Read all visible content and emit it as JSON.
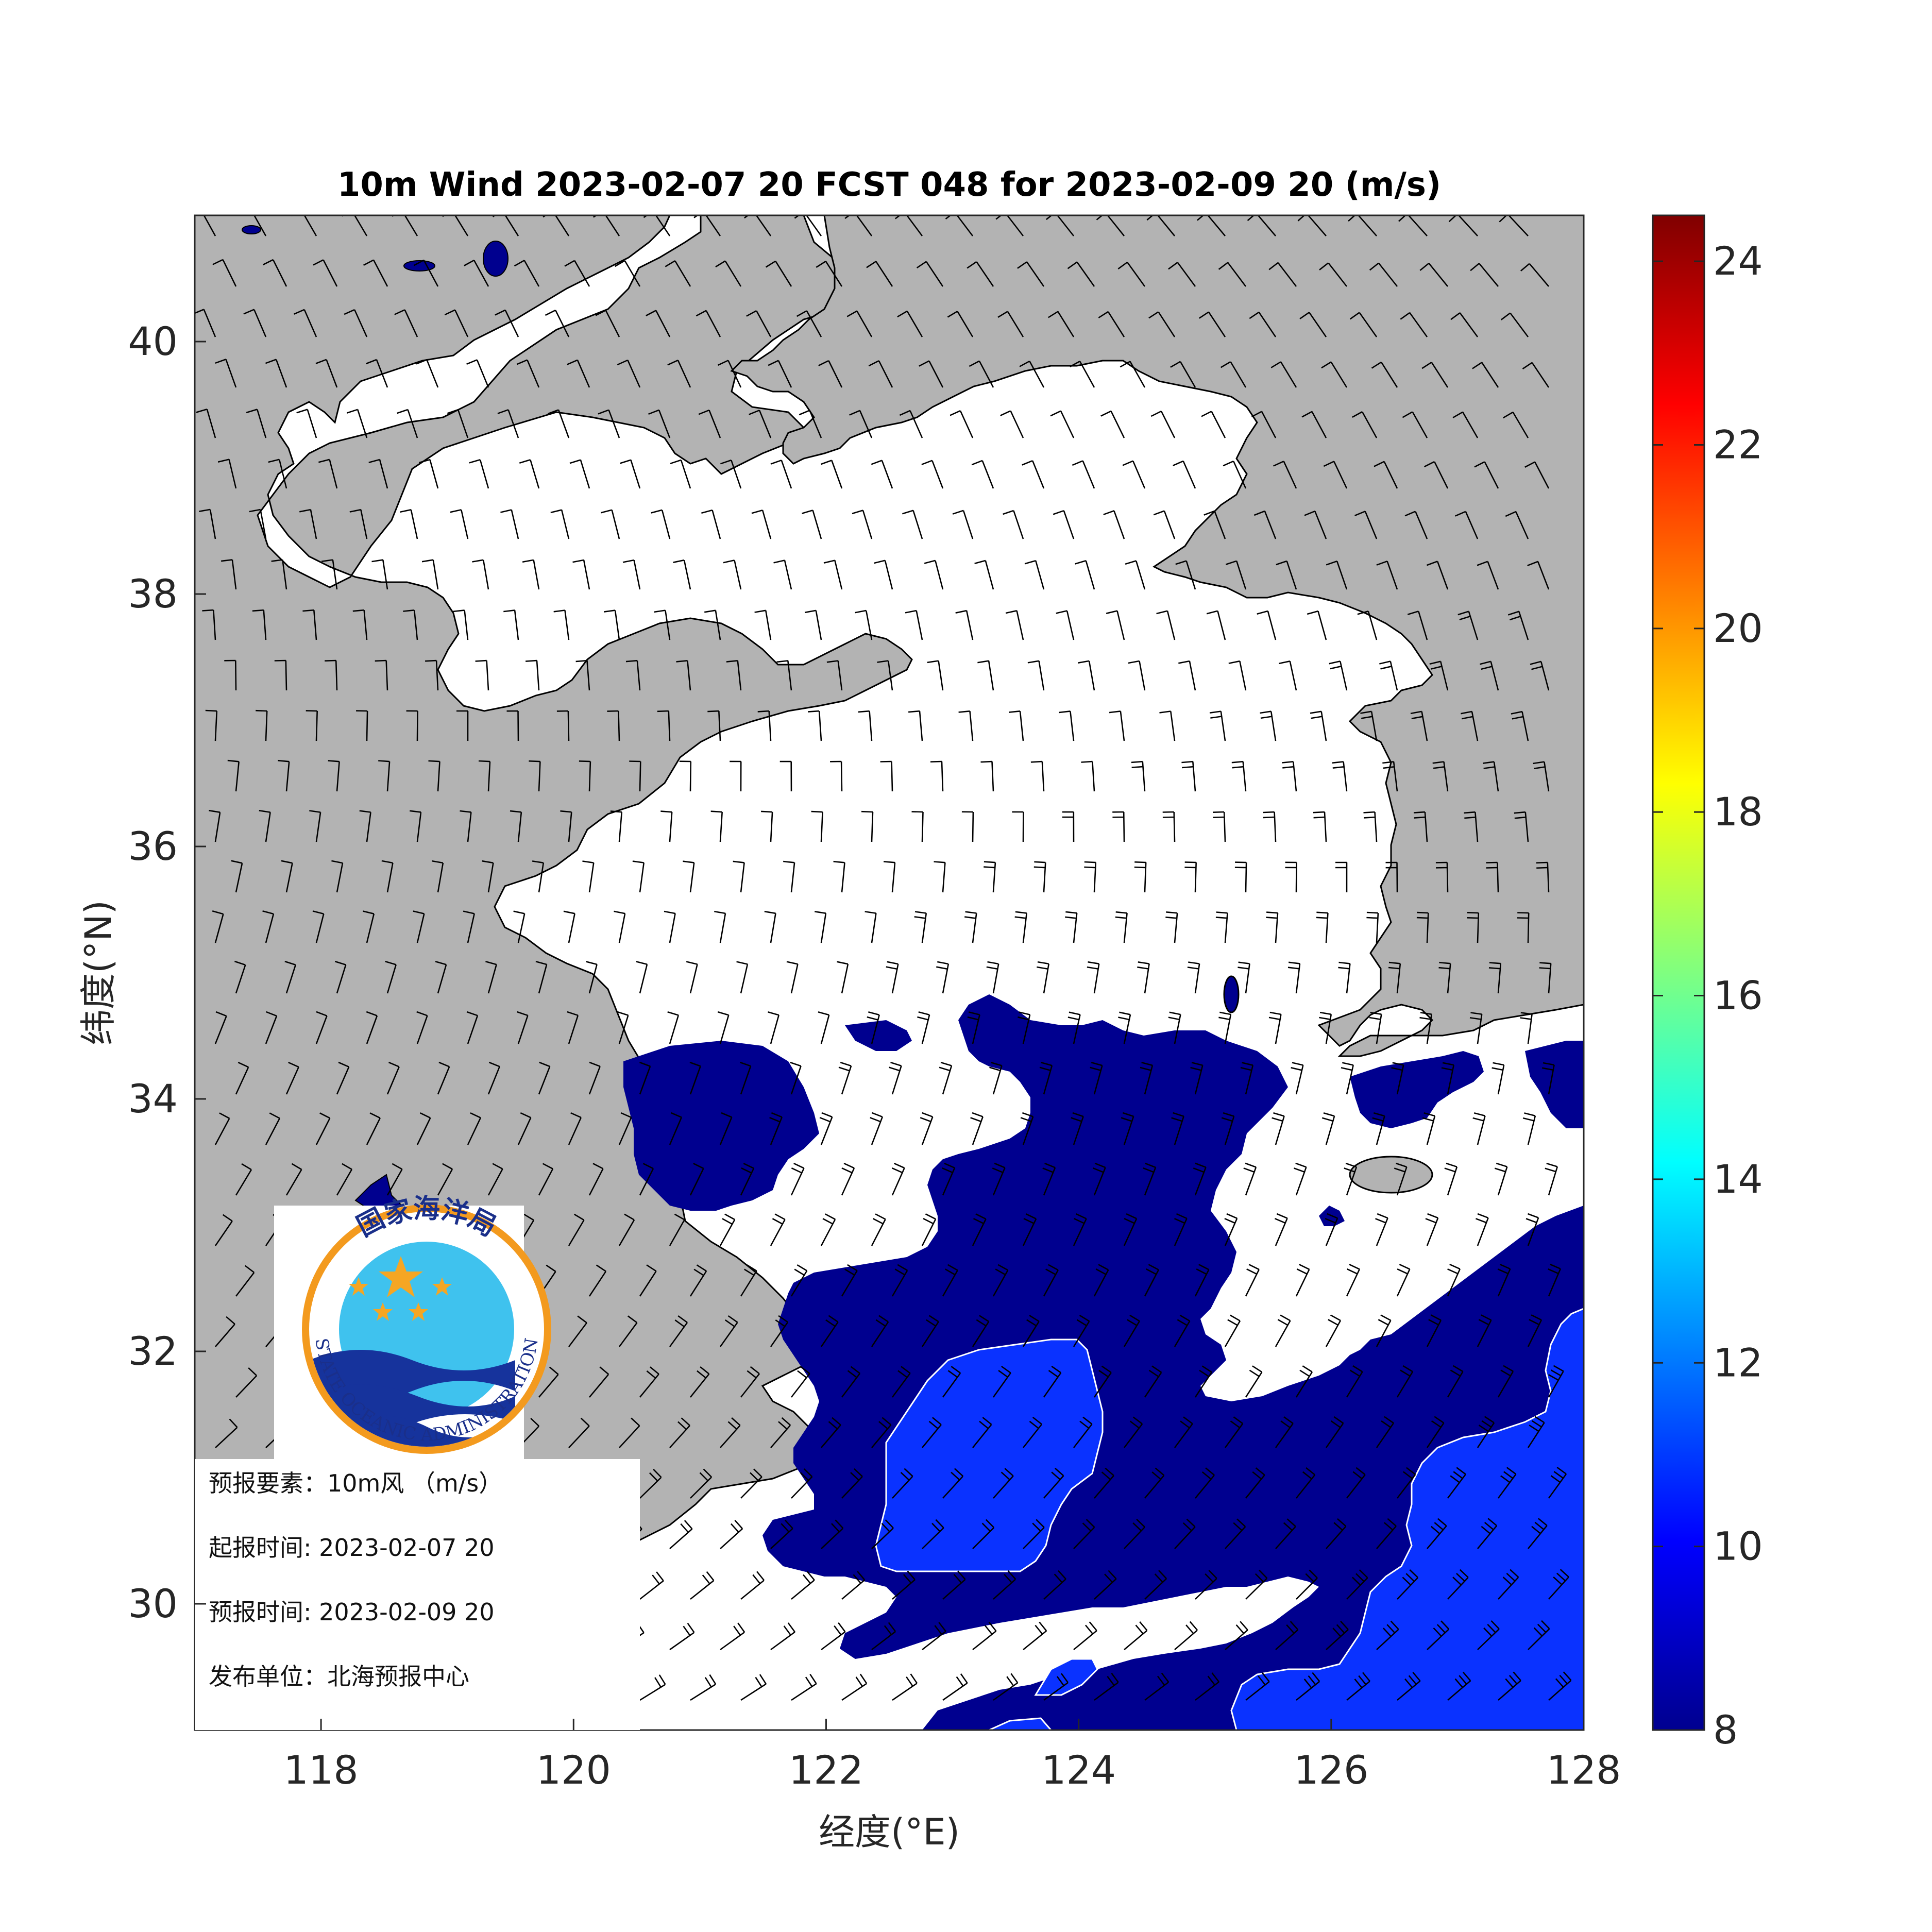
{
  "title": "10m Wind 2023-02-07 20 FCST 048 for 2023-02-09 20 (m/s)",
  "x_axis": {
    "label": "经度(°E)",
    "ticks": [
      "118",
      "120",
      "122",
      "124",
      "126",
      "128"
    ],
    "range": [
      117,
      128
    ]
  },
  "y_axis": {
    "label": "纬度(°N)",
    "ticks": [
      "30",
      "32",
      "34",
      "36",
      "38",
      "40"
    ],
    "range": [
      29,
      41
    ]
  },
  "colorbar": {
    "ticks": [
      "8",
      "10",
      "12",
      "14",
      "16",
      "18",
      "20",
      "22",
      "24"
    ],
    "range": [
      8,
      24.5
    ],
    "colormap": "jet"
  },
  "colors": {
    "land": "#b3b3b3",
    "sea_below_8": "#ffffff",
    "wind_8_10": "#00008f",
    "wind_10_12": "#0a32ff",
    "logo_ring": "#f39a1e",
    "logo_sky": "#3fc2ee",
    "logo_waves": "#16339c",
    "logo_stars": "#f5a623"
  },
  "logo": {
    "text_top": "国家海洋局",
    "text_bottom": "STATE OCEANIC ADMINISTRATION",
    "icon": "state-oceanic-administration-seal"
  },
  "info": {
    "element": "预报要素：10m风 （m/s）",
    "init_time": "起报时间: 2023-02-07 20",
    "valid_time": "预报时间: 2023-02-09 20",
    "issuer": "发布单位：北海预报中心"
  },
  "layers": [
    "land",
    "wind-speed-shading",
    "wind-barbs"
  ]
}
